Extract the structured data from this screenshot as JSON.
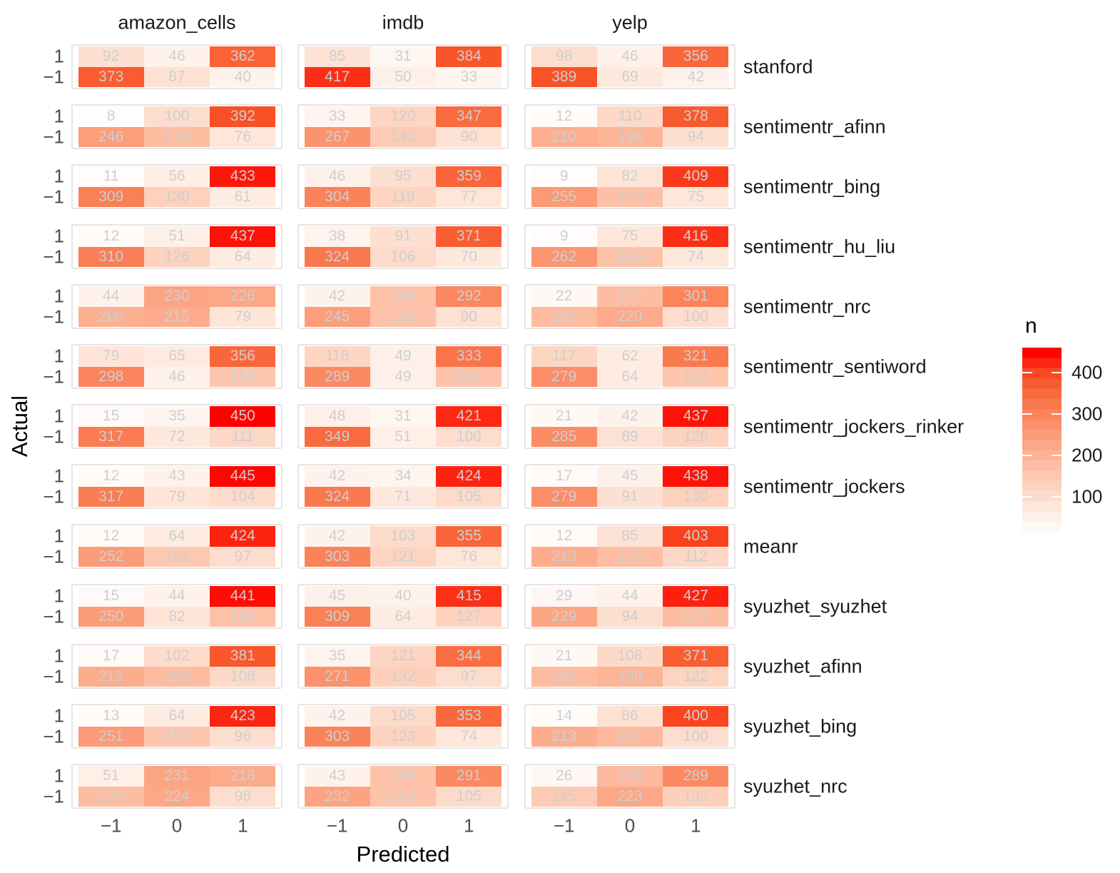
{
  "chart_data": {
    "type": "heatmap",
    "description": "Faceted confusion matrices (Actual vs Predicted sentiment) for multiple sentiment analysis methods across three datasets",
    "xlabel": "Predicted",
    "ylabel": "Actual",
    "x_ticks": [
      "−1",
      "0",
      "1"
    ],
    "y_ticks": [
      "1",
      "−1"
    ],
    "col_facets": [
      "amazon_cells",
      "imdb",
      "yelp"
    ],
    "row_facets": [
      "stanford",
      "sentimentr_afinn",
      "sentimentr_bing",
      "sentimentr_hu_liu",
      "sentimentr_nrc",
      "sentimentr_sentiword",
      "sentimentr_jockers_rinker",
      "sentimentr_jockers",
      "meanr",
      "syuzhet_syuzhet",
      "syuzhet_afinn",
      "syuzhet_bing",
      "syuzhet_nrc"
    ],
    "matrix": [
      [
        [
          [
            92,
            46,
            362
          ],
          [
            373,
            87,
            40
          ]
        ],
        [
          [
            85,
            31,
            384
          ],
          [
            417,
            50,
            33
          ]
        ],
        [
          [
            98,
            46,
            356
          ],
          [
            389,
            69,
            42
          ]
        ]
      ],
      [
        [
          [
            8,
            100,
            392
          ],
          [
            246,
            178,
            76
          ]
        ],
        [
          [
            33,
            120,
            347
          ],
          [
            267,
            143,
            90
          ]
        ],
        [
          [
            12,
            110,
            378
          ],
          [
            210,
            196,
            94
          ]
        ]
      ],
      [
        [
          [
            11,
            56,
            433
          ],
          [
            309,
            130,
            61
          ]
        ],
        [
          [
            46,
            95,
            359
          ],
          [
            304,
            119,
            77
          ]
        ],
        [
          [
            9,
            82,
            409
          ],
          [
            255,
            170,
            75
          ]
        ]
      ],
      [
        [
          [
            12,
            51,
            437
          ],
          [
            310,
            126,
            64
          ]
        ],
        [
          [
            38,
            91,
            371
          ],
          [
            324,
            106,
            70
          ]
        ],
        [
          [
            9,
            75,
            416
          ],
          [
            262,
            164,
            74
          ]
        ]
      ],
      [
        [
          [
            44,
            230,
            226
          ],
          [
            206,
            215,
            79
          ]
        ],
        [
          [
            42,
            166,
            292
          ],
          [
            245,
            165,
            90
          ]
        ],
        [
          [
            22,
            177,
            301
          ],
          [
            180,
            220,
            100
          ]
        ]
      ],
      [
        [
          [
            79,
            65,
            356
          ],
          [
            298,
            46,
            156
          ]
        ],
        [
          [
            118,
            49,
            333
          ],
          [
            289,
            49,
            162
          ]
        ],
        [
          [
            117,
            62,
            321
          ],
          [
            279,
            64,
            157
          ]
        ]
      ],
      [
        [
          [
            15,
            35,
            450
          ],
          [
            317,
            72,
            111
          ]
        ],
        [
          [
            48,
            31,
            421
          ],
          [
            349,
            51,
            100
          ]
        ],
        [
          [
            21,
            42,
            437
          ],
          [
            285,
            89,
            126
          ]
        ]
      ],
      [
        [
          [
            12,
            43,
            445
          ],
          [
            317,
            79,
            104
          ]
        ],
        [
          [
            42,
            34,
            424
          ],
          [
            324,
            71,
            105
          ]
        ],
        [
          [
            17,
            45,
            438
          ],
          [
            279,
            91,
            130
          ]
        ]
      ],
      [
        [
          [
            12,
            64,
            424
          ],
          [
            252,
            151,
            97
          ]
        ],
        [
          [
            42,
            103,
            355
          ],
          [
            303,
            121,
            76
          ]
        ],
        [
          [
            12,
            85,
            403
          ],
          [
            213,
            175,
            112
          ]
        ]
      ],
      [
        [
          [
            15,
            44,
            441
          ],
          [
            250,
            82,
            168
          ]
        ],
        [
          [
            45,
            40,
            415
          ],
          [
            309,
            64,
            127
          ]
        ],
        [
          [
            29,
            44,
            427
          ],
          [
            229,
            94,
            177
          ]
        ]
      ],
      [
        [
          [
            17,
            102,
            381
          ],
          [
            212,
            180,
            108
          ]
        ],
        [
          [
            35,
            121,
            344
          ],
          [
            271,
            132,
            97
          ]
        ],
        [
          [
            21,
            108,
            371
          ],
          [
            180,
            198,
            122
          ]
        ]
      ],
      [
        [
          [
            13,
            64,
            423
          ],
          [
            251,
            153,
            96
          ]
        ],
        [
          [
            42,
            105,
            353
          ],
          [
            303,
            123,
            74
          ]
        ],
        [
          [
            14,
            86,
            400
          ],
          [
            213,
            187,
            100
          ]
        ]
      ],
      [
        [
          [
            51,
            231,
            218
          ],
          [
            178,
            224,
            98
          ]
        ],
        [
          [
            43,
            166,
            291
          ],
          [
            232,
            163,
            105
          ]
        ],
        [
          [
            26,
            185,
            289
          ],
          [
            145,
            223,
            132
          ]
        ]
      ]
    ],
    "legend": {
      "title": "n",
      "tick_values": [
        400,
        300,
        200,
        100
      ],
      "scale_min": 0,
      "scale_max": 450
    },
    "color_scale": {
      "low": "#FFFFFF",
      "high": "#FF0000",
      "stops": [
        [
          0,
          255,
          255,
          255
        ],
        [
          56,
          254,
          238,
          229
        ],
        [
          112,
          253,
          216,
          198
        ],
        [
          168,
          253,
          193,
          167
        ],
        [
          224,
          252,
          168,
          135
        ],
        [
          280,
          251,
          142,
          103
        ],
        [
          336,
          250,
          114,
          71
        ],
        [
          392,
          249,
          80,
          37
        ],
        [
          450,
          255,
          0,
          0
        ]
      ]
    },
    "colors": {
      "cell_text": "#CDCFD0",
      "axis_text": "#4D4D4D",
      "facet_text": "#1A1A1A",
      "panel_border": "#E5E5E5"
    }
  }
}
